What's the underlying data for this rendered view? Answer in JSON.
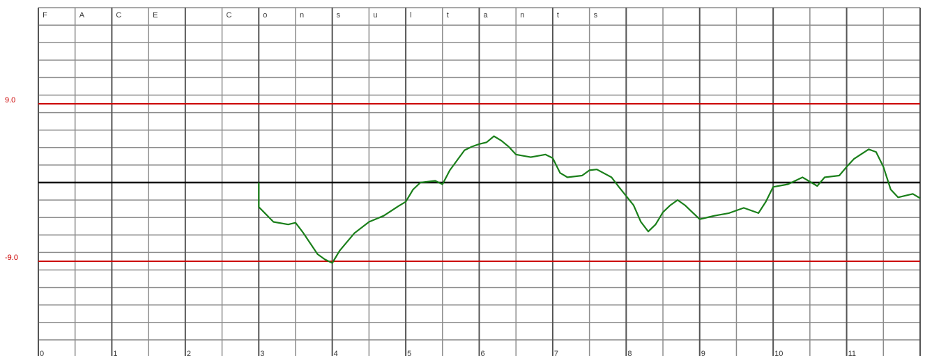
{
  "chart_data": {
    "type": "line",
    "header_cells": [
      "F",
      "A",
      "C",
      "E",
      null,
      "C",
      "o",
      "n",
      "s",
      "u",
      "l",
      "t",
      "a",
      "n",
      "t",
      "s"
    ],
    "xlim": [
      0,
      12
    ],
    "xticks": [
      0,
      1,
      2,
      3,
      4,
      5,
      6,
      7,
      8,
      9,
      10,
      11
    ],
    "xgrid": [
      0,
      0.5,
      1,
      1.5,
      2,
      2.5,
      3,
      3.5,
      4,
      4.5,
      5,
      5.5,
      6,
      6.5,
      7,
      7.5,
      8,
      8.5,
      9,
      9.5,
      10,
      10.5,
      11,
      11.5,
      12
    ],
    "ylim": [
      -20,
      20
    ],
    "ygrid": [
      -20,
      -18,
      -16,
      -14,
      -12,
      -10,
      -8,
      -6,
      -4,
      -2,
      0,
      2,
      4,
      6,
      8,
      10,
      12,
      14,
      16,
      18,
      20
    ],
    "yticks": [
      {
        "value": 9,
        "label": "9.0"
      },
      {
        "value": -9,
        "label": "-9.0"
      }
    ],
    "limit_color": "#cc0000",
    "baseline": 0,
    "baseline_color": "#000000",
    "grid": true,
    "series": [
      {
        "color": "#1a7f1a",
        "x": [
          3,
          3,
          3.2,
          3.4,
          3.5,
          3.6,
          3.8,
          3.9,
          4.0,
          4.1,
          4.3,
          4.5,
          4.7,
          4.9,
          5.0,
          5.1,
          5.2,
          5.4,
          5.5,
          5.6,
          5.8,
          5.9,
          6.0,
          6.1,
          6.2,
          6.3,
          6.4,
          6.5,
          6.7,
          6.9,
          7.0,
          7.1,
          7.2,
          7.4,
          7.5,
          7.6,
          7.8,
          7.9,
          8.1,
          8.2,
          8.3,
          8.4,
          8.5,
          8.6,
          8.7,
          8.8,
          8.9,
          9.0,
          9.2,
          9.4,
          9.6,
          9.8,
          9.9,
          10.0,
          10.2,
          10.4,
          10.6,
          10.7,
          10.9,
          11.0,
          11.1,
          11.3,
          11.4,
          11.5,
          11.6,
          11.7,
          11.9,
          12.0
        ],
        "values": [
          0,
          -2.8,
          -4.5,
          -4.8,
          -4.6,
          -5.7,
          -8.2,
          -8.8,
          -9.2,
          -7.8,
          -5.8,
          -4.5,
          -3.8,
          -2.7,
          -2.2,
          -0.8,
          0,
          0.2,
          -0.2,
          1.4,
          3.7,
          4.1,
          4.4,
          4.6,
          5.3,
          4.8,
          4.1,
          3.2,
          2.9,
          3.2,
          2.8,
          1.1,
          0.6,
          0.8,
          1.4,
          1.5,
          0.6,
          -0.5,
          -2.6,
          -4.5,
          -5.6,
          -4.8,
          -3.4,
          -2.6,
          -2.0,
          -2.6,
          -3.4,
          -4.2,
          -3.8,
          -3.5,
          -2.9,
          -3.5,
          -2.2,
          -0.5,
          -0.2,
          0.6,
          -0.4,
          0.6,
          0.8,
          1.8,
          2.7,
          3.8,
          3.5,
          1.8,
          -0.8,
          -1.7,
          -1.3,
          -1.8
        ]
      }
    ]
  }
}
